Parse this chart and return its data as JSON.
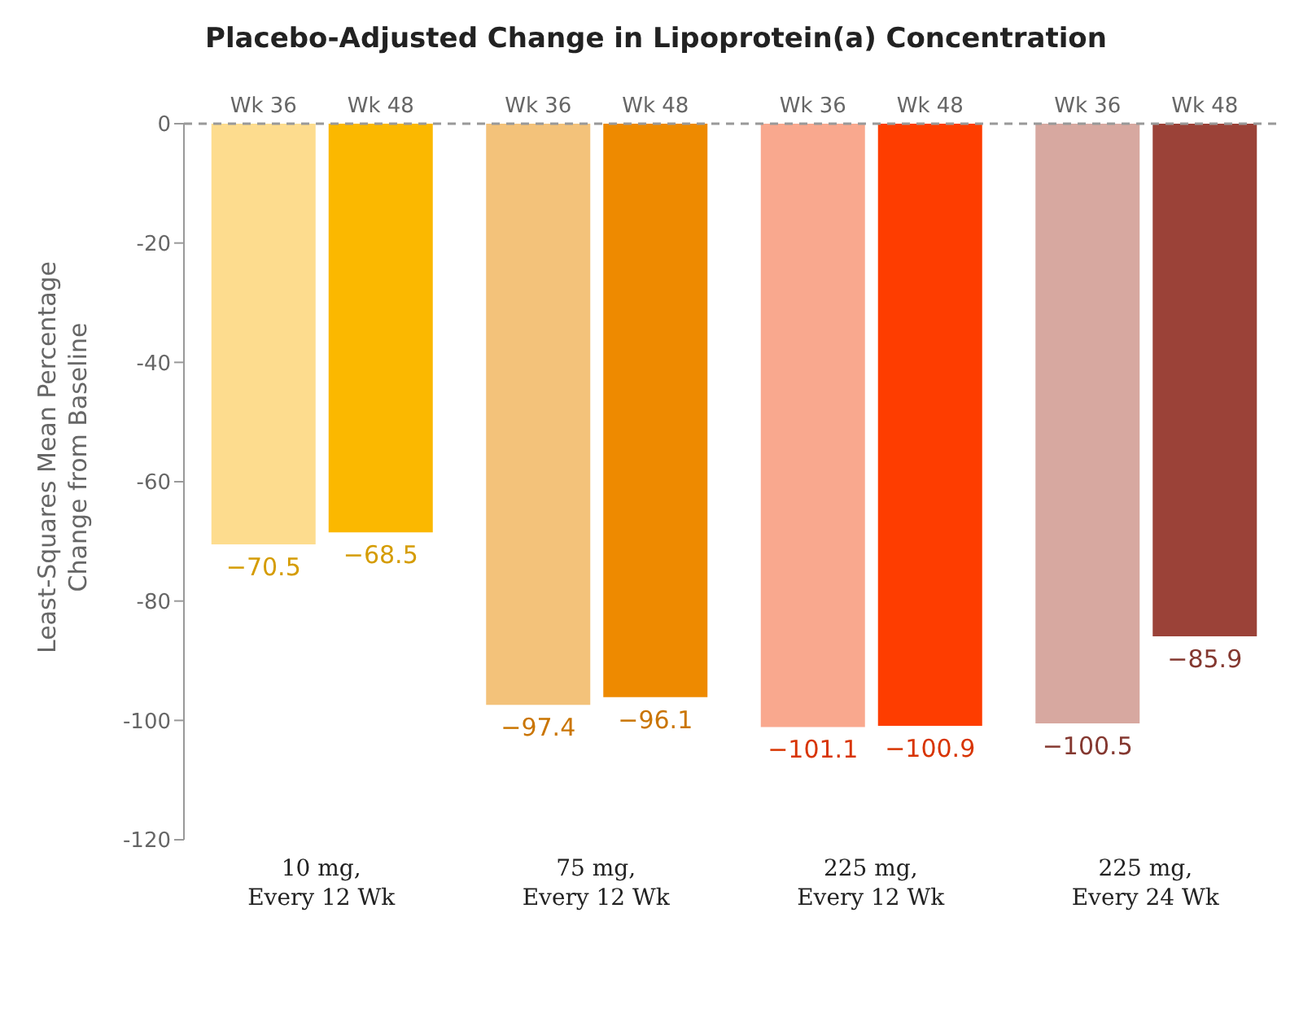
{
  "chart_data": {
    "type": "bar",
    "title": "Placebo-Adjusted Change in Lipoprotein(a) Concentration",
    "ylabel": "Least-Squares Mean Percentage Change from Baseline",
    "categories": [
      "10 mg, Every 12 Wk",
      "75 mg, Every 12 Wk",
      "225 mg, Every 12 Wk",
      "225 mg, Every 24 Wk"
    ],
    "series": [
      {
        "name": "Wk 36",
        "colors": [
          "#fddc8e",
          "#f3c27a",
          "#f9a88e",
          "#d7a8a0"
        ],
        "values": [
          -70.5,
          -97.4,
          -101.1,
          -100.5
        ]
      },
      {
        "name": "Wk 48",
        "colors": [
          "#fbb800",
          "#ee8a00",
          "#fe3d00",
          "#9b4238"
        ],
        "values": [
          -68.5,
          -96.1,
          -100.9,
          -85.9
        ]
      }
    ],
    "ylim": [
      -120,
      0
    ],
    "yticks": [
      0,
      -20,
      -40,
      -60,
      -80,
      -100,
      -120
    ],
    "ref_lines": [
      {
        "axis": "y",
        "value": 0,
        "color": "#999999",
        "line_style": "dashed"
      }
    ],
    "data_labels": true,
    "grid": false,
    "legend": false
  }
}
